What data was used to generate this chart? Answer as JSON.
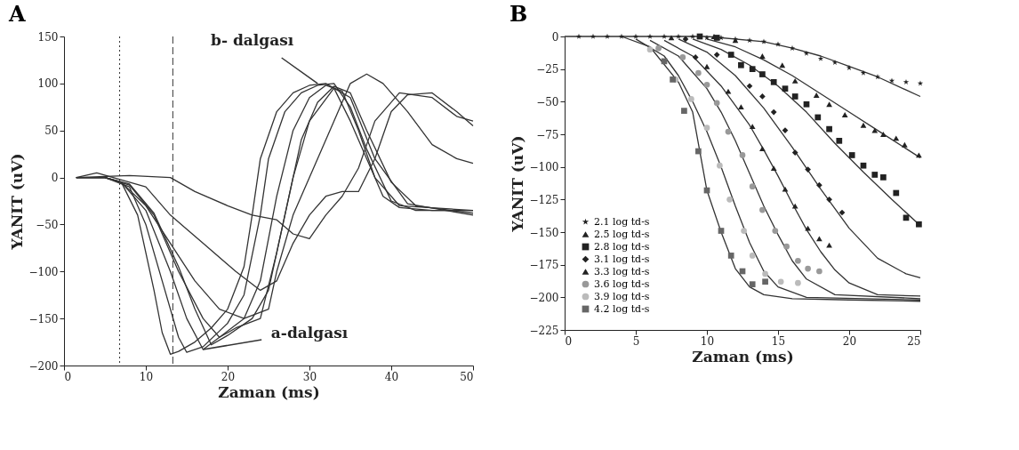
{
  "chart_data": [
    {
      "type": "line",
      "title": "A",
      "xlabel": "Zaman (ms)",
      "ylabel": "YANIT (uV)",
      "xlim": [
        0,
        50
      ],
      "ylim": [
        -200,
        150
      ],
      "xticks": [
        0,
        10,
        20,
        30,
        40,
        50
      ],
      "yticks": [
        -200,
        -150,
        -100,
        -50,
        0,
        50,
        100,
        150
      ],
      "grid": false,
      "legend": false,
      "marker": "none",
      "line_style": "solid",
      "series": [
        {
          "color": "#333333",
          "x": [
            1.5,
            5,
            7,
            9,
            11,
            12,
            13,
            14,
            16,
            18,
            20,
            22,
            23,
            24,
            26,
            28,
            30,
            32,
            33,
            35,
            37,
            39,
            41,
            45,
            50
          ],
          "values": [
            0,
            0,
            -5,
            -40,
            -120,
            -165,
            -188,
            -185,
            -175,
            -160,
            -140,
            -95,
            -40,
            20,
            70,
            90,
            98,
            100,
            95,
            60,
            20,
            -20,
            -32,
            -35,
            -35
          ]
        },
        {
          "color": "#333333",
          "x": [
            1.5,
            5,
            8,
            10,
            12,
            14,
            15,
            17,
            20,
            22,
            24,
            25,
            27,
            29,
            31,
            33,
            35,
            37,
            40,
            43,
            50
          ],
          "values": [
            0,
            0,
            -10,
            -50,
            -110,
            -170,
            -186,
            -180,
            -155,
            -125,
            -40,
            20,
            70,
            90,
            98,
            100,
            75,
            30,
            -25,
            -35,
            -35
          ]
        },
        {
          "color": "#333333",
          "x": [
            1.5,
            5,
            7,
            10,
            13,
            15,
            17,
            19,
            22,
            24,
            26,
            28,
            30,
            32,
            34,
            36,
            38,
            41,
            50
          ],
          "values": [
            0,
            0,
            -5,
            -35,
            -100,
            -150,
            -183,
            -170,
            -150,
            -110,
            -20,
            50,
            85,
            98,
            92,
            50,
            0,
            -30,
            -35
          ]
        },
        {
          "color": "#333333",
          "x": [
            1.5,
            5,
            8,
            11,
            14,
            16,
            18,
            20,
            23,
            25,
            27,
            29,
            31,
            33,
            35,
            37,
            40,
            43,
            50
          ],
          "values": [
            0,
            0,
            -7,
            -38,
            -95,
            -140,
            -178,
            -168,
            -150,
            -120,
            -40,
            40,
            80,
            97,
            90,
            50,
            -5,
            -30,
            -38
          ]
        },
        {
          "color": "#333333",
          "x": [
            1.5,
            5,
            8,
            11,
            14,
            17,
            19,
            21,
            24,
            26,
            28,
            30,
            33,
            35,
            38,
            42,
            50
          ],
          "values": [
            0,
            0,
            -8,
            -40,
            -100,
            -150,
            -170,
            -160,
            -150,
            -80,
            0,
            60,
            95,
            85,
            20,
            -28,
            -40
          ]
        },
        {
          "color": "#333333",
          "x": [
            1.5,
            5,
            7,
            10,
            13,
            16,
            19,
            22,
            25,
            26,
            28,
            31,
            33,
            35,
            37,
            39,
            42,
            45,
            48,
            50
          ],
          "values": [
            0,
            0,
            -5,
            -30,
            -70,
            -110,
            -140,
            -150,
            -140,
            -100,
            -40,
            20,
            60,
            100,
            110,
            100,
            70,
            35,
            20,
            15
          ]
        },
        {
          "color": "#333333",
          "x": [
            1.5,
            4,
            6,
            10,
            13,
            17,
            21,
            24,
            26,
            28,
            30,
            32,
            34,
            36,
            38,
            40,
            42,
            45,
            48,
            50
          ],
          "values": [
            0,
            5,
            0,
            -10,
            -40,
            -70,
            -100,
            -120,
            -110,
            -70,
            -40,
            -20,
            -15,
            -15,
            20,
            70,
            88,
            90,
            70,
            55
          ]
        },
        {
          "color": "#333333",
          "x": [
            1.5,
            8,
            13,
            16,
            20,
            23,
            26,
            28,
            30,
            32,
            34,
            36,
            38,
            41,
            45,
            48,
            50
          ],
          "values": [
            0,
            2,
            0,
            -15,
            -30,
            -40,
            -45,
            -60,
            -65,
            -40,
            -20,
            10,
            60,
            90,
            85,
            65,
            60
          ]
        }
      ],
      "ref_lines": [
        {
          "axis": "x",
          "value": 6.8,
          "line_style": "dotted",
          "color": "#333333"
        },
        {
          "axis": "x",
          "value": 13.3,
          "line_style": "dashed",
          "color": "#333333"
        }
      ],
      "annotations": [
        {
          "text": "b- dalgası",
          "x": 31,
          "y": 100
        },
        {
          "text": "a-dalgası",
          "x": 17,
          "y": -183
        }
      ]
    },
    {
      "type": "scatter",
      "title": "B",
      "xlabel": "Zaman (ms)",
      "ylabel": "YANIT (uV)",
      "xlim": [
        0,
        25
      ],
      "ylim": [
        -225,
        0
      ],
      "xticks": [
        0,
        5,
        10,
        15,
        20,
        25
      ],
      "yticks": [
        -225,
        -200,
        -175,
        -150,
        -125,
        -100,
        -75,
        -50,
        -25,
        0
      ],
      "grid": false,
      "legend": "bottom left",
      "series": [
        {
          "name": "2.1 log td-s",
          "type": "scatter",
          "marker": "star",
          "color": "#222222",
          "x": [
            1,
            2,
            3,
            4,
            5,
            6,
            7,
            8,
            9,
            10,
            11,
            12,
            13,
            14,
            15,
            16,
            17,
            18,
            19,
            20,
            21,
            22,
            23,
            24,
            25
          ],
          "values": [
            0,
            0,
            0,
            0,
            0,
            0,
            0,
            0,
            0,
            -1,
            -1,
            -2,
            -3,
            -4,
            -6,
            -9,
            -13,
            -17,
            -20,
            -24,
            -28,
            -31,
            -34,
            -35,
            -36
          ]
        },
        {
          "name": "2.5 log td-s",
          "type": "scatter",
          "marker": "triangle",
          "color": "#222222",
          "x": [
            10.5,
            12,
            13.9,
            15.3,
            16.2,
            17.7,
            18.6,
            19.7,
            21,
            21.8,
            22.4,
            23.3,
            23.9,
            24.9
          ],
          "values": [
            0,
            -3,
            -15,
            -22,
            -34,
            -45,
            -52,
            -60,
            -68,
            -72,
            -75,
            -78,
            -83,
            -91
          ]
        },
        {
          "name": "2.8 log td-s",
          "type": "scatter",
          "marker": "square",
          "color": "#222222",
          "x": [
            9.5,
            10.7,
            11.7,
            12.4,
            13.2,
            13.9,
            14.7,
            15.5,
            16.2,
            17,
            17.8,
            18.6,
            19.3,
            20.2,
            21,
            21.8,
            22.4,
            23.3,
            24,
            24.9
          ],
          "values": [
            0,
            -1,
            -14,
            -22,
            -25,
            -29,
            -35,
            -40,
            -46,
            -52,
            -62,
            -71,
            -80,
            -91,
            -99,
            -106,
            -108,
            -120,
            -139,
            -144
          ]
        },
        {
          "name": "3.1 log td-s",
          "type": "scatter",
          "marker": "diamond",
          "color": "#222222",
          "x": [
            8.5,
            9.2,
            10.7,
            13,
            13.9,
            14.7,
            15.5,
            16.2,
            17.1,
            17.9,
            18.6,
            19.5
          ],
          "values": [
            -2,
            -16,
            -14,
            -38,
            -46,
            -58,
            -72,
            -89,
            -102,
            -114,
            -125,
            -135
          ]
        },
        {
          "name": "3.3 log td-s",
          "type": "scatter",
          "marker": "triangle",
          "color": "#222222",
          "x": [
            7.5,
            10,
            11.5,
            12.4,
            13.2,
            13.9,
            14.7,
            15.5,
            16.2,
            17.1,
            17.9,
            18.6
          ],
          "values": [
            -1,
            -23,
            -42,
            -54,
            -69,
            -86,
            -101,
            -117,
            -130,
            -147,
            -155,
            -160
          ]
        },
        {
          "name": "3.6 log td-s",
          "type": "scatter",
          "marker": "circle",
          "color": "#999999",
          "x": [
            6.6,
            8.3,
            9.4,
            10,
            10.7,
            11.5,
            12.5,
            13.2,
            13.9,
            14.8,
            15.6,
            16.4,
            17.1,
            17.9
          ],
          "values": [
            -9,
            -16,
            -28,
            -37,
            -51,
            -73,
            -91,
            -115,
            -133,
            -149,
            -161,
            -172,
            -178,
            -180
          ]
        },
        {
          "name": "3.9 log td-s",
          "type": "scatter",
          "marker": "circle",
          "color": "#bbbbbb",
          "x": [
            6,
            7.8,
            8.9,
            10,
            10.9,
            11.6,
            12.6,
            13.2,
            14.1,
            15.2,
            16.4
          ],
          "values": [
            -10,
            -33,
            -48,
            -70,
            -99,
            -125,
            -149,
            -168,
            -182,
            -188,
            -189
          ]
        },
        {
          "name": "4.2 log td-s",
          "type": "scatter",
          "marker": "square",
          "color": "#666666",
          "x": [
            7,
            7.6,
            8.4,
            9.4,
            10,
            11,
            11.7,
            12.5,
            13.2,
            14.1
          ],
          "values": [
            -19,
            -33,
            -57,
            -88,
            -118,
            -149,
            -168,
            -180,
            -190,
            -188
          ]
        },
        {
          "type": "line",
          "marker": "none",
          "color": "#333333",
          "x": [
            0,
            10,
            14,
            16,
            18,
            20,
            22,
            24,
            25
          ],
          "values": [
            0,
            0,
            -4,
            -9,
            -15,
            -23,
            -31,
            -41,
            -46
          ]
        },
        {
          "type": "line",
          "marker": "none",
          "color": "#333333",
          "x": [
            10,
            12,
            14,
            16,
            18,
            20,
            22,
            24,
            25
          ],
          "values": [
            -2,
            -8,
            -18,
            -30,
            -44,
            -58,
            -72,
            -86,
            -93
          ]
        },
        {
          "type": "line",
          "marker": "none",
          "color": "#333333",
          "x": [
            9,
            11,
            13,
            15,
            17,
            19,
            21,
            23,
            25
          ],
          "values": [
            -2,
            -10,
            -22,
            -38,
            -58,
            -82,
            -104,
            -125,
            -145
          ]
        },
        {
          "type": "line",
          "marker": "none",
          "color": "#333333",
          "x": [
            8,
            10,
            12,
            14,
            16,
            18,
            20,
            22,
            24,
            25
          ],
          "values": [
            -2,
            -12,
            -30,
            -55,
            -85,
            -117,
            -147,
            -170,
            -182,
            -185
          ]
        },
        {
          "type": "line",
          "marker": "none",
          "color": "#333333",
          "x": [
            7,
            9,
            11,
            13,
            14,
            15,
            16,
            17,
            18,
            19,
            20,
            22,
            25
          ],
          "values": [
            -3,
            -15,
            -38,
            -68,
            -87,
            -107,
            -128,
            -148,
            -165,
            -179,
            -189,
            -198,
            -199
          ]
        },
        {
          "type": "line",
          "marker": "none",
          "color": "#333333",
          "x": [
            6,
            8,
            10,
            11,
            12,
            13,
            14,
            15,
            16,
            17,
            19,
            25
          ],
          "values": [
            -3,
            -15,
            -40,
            -58,
            -80,
            -105,
            -130,
            -152,
            -172,
            -186,
            -198,
            -201
          ]
        },
        {
          "type": "line",
          "marker": "none",
          "color": "#333333",
          "x": [
            5,
            7,
            8,
            9,
            10,
            11,
            12,
            13,
            14,
            15,
            17,
            25
          ],
          "values": [
            -2,
            -15,
            -30,
            -50,
            -73,
            -100,
            -130,
            -158,
            -180,
            -192,
            -200,
            -202
          ]
        },
        {
          "type": "line",
          "marker": "none",
          "color": "#333333",
          "x": [
            4,
            6,
            8,
            9,
            10,
            11,
            12,
            13,
            14,
            16,
            20,
            25
          ],
          "values": [
            0,
            -8,
            -35,
            -58,
            -118,
            -150,
            -178,
            -192,
            -198,
            -201,
            -202,
            -203
          ]
        }
      ]
    }
  ]
}
